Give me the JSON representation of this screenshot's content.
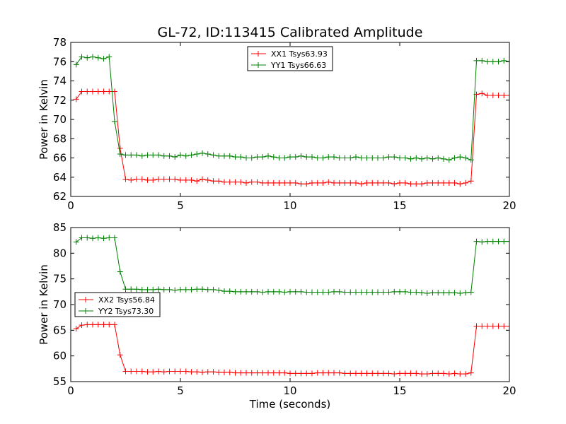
{
  "chart_data": {
    "title": "GL-72, ID:113415 Calibrated Amplitude",
    "xlabel": "Time (seconds)",
    "xlim": [
      0,
      20
    ],
    "xticks": [
      "0",
      "5",
      "10",
      "15",
      "20"
    ],
    "panels": [
      {
        "type": "line",
        "ylabel": "Power in Kelvin",
        "ylim": [
          62,
          78
        ],
        "yticks": [
          "62",
          "64",
          "66",
          "68",
          "70",
          "72",
          "74",
          "76",
          "78"
        ],
        "legend_position": "upper-center",
        "series": [
          {
            "name": "XX1 Tsys63.93",
            "color": "#ff0000",
            "x": [
              0.25,
              0.5,
              0.75,
              1.0,
              1.25,
              1.5,
              1.75,
              2.0,
              2.25,
              2.5,
              2.75,
              3.0,
              3.25,
              3.5,
              3.75,
              4.0,
              4.25,
              4.5,
              4.75,
              5.0,
              5.25,
              5.5,
              5.75,
              6.0,
              6.25,
              6.5,
              6.75,
              7.0,
              7.25,
              7.5,
              7.75,
              8.0,
              8.25,
              8.5,
              8.75,
              9.0,
              9.25,
              9.5,
              9.75,
              10.0,
              10.25,
              10.5,
              10.75,
              11.0,
              11.25,
              11.5,
              11.75,
              12.0,
              12.25,
              12.5,
              12.75,
              13.0,
              13.25,
              13.5,
              13.75,
              14.0,
              14.25,
              14.5,
              14.75,
              15.0,
              15.25,
              15.5,
              15.75,
              16.0,
              16.25,
              16.5,
              16.75,
              17.0,
              17.25,
              17.5,
              17.75,
              18.0,
              18.25,
              18.5,
              18.75,
              19.0,
              19.25,
              19.5,
              19.75,
              20.0
            ],
            "values": [
              72.1,
              72.9,
              72.9,
              72.9,
              72.9,
              72.9,
              72.9,
              72.9,
              67.0,
              63.8,
              63.7,
              63.8,
              63.8,
              63.7,
              63.7,
              63.8,
              63.8,
              63.8,
              63.8,
              63.7,
              63.7,
              63.7,
              63.6,
              63.8,
              63.7,
              63.6,
              63.6,
              63.5,
              63.5,
              63.5,
              63.5,
              63.4,
              63.5,
              63.5,
              63.4,
              63.4,
              63.4,
              63.4,
              63.4,
              63.4,
              63.4,
              63.3,
              63.3,
              63.4,
              63.4,
              63.4,
              63.5,
              63.4,
              63.4,
              63.4,
              63.4,
              63.4,
              63.3,
              63.4,
              63.4,
              63.4,
              63.4,
              63.4,
              63.3,
              63.4,
              63.4,
              63.3,
              63.3,
              63.3,
              63.4,
              63.4,
              63.4,
              63.4,
              63.4,
              63.4,
              63.3,
              63.4,
              63.6,
              72.6,
              72.7,
              72.5,
              72.5,
              72.5,
              72.5,
              72.5
            ]
          },
          {
            "name": "YY1 Tsys66.63",
            "color": "#008000",
            "x": [
              0.25,
              0.5,
              0.75,
              1.0,
              1.25,
              1.5,
              1.75,
              2.0,
              2.25,
              2.5,
              2.75,
              3.0,
              3.25,
              3.5,
              3.75,
              4.0,
              4.25,
              4.5,
              4.75,
              5.0,
              5.25,
              5.5,
              5.75,
              6.0,
              6.25,
              6.5,
              6.75,
              7.0,
              7.25,
              7.5,
              7.75,
              8.0,
              8.25,
              8.5,
              8.75,
              9.0,
              9.25,
              9.5,
              9.75,
              10.0,
              10.25,
              10.5,
              10.75,
              11.0,
              11.25,
              11.5,
              11.75,
              12.0,
              12.25,
              12.5,
              12.75,
              13.0,
              13.25,
              13.5,
              13.75,
              14.0,
              14.25,
              14.5,
              14.75,
              15.0,
              15.25,
              15.5,
              15.75,
              16.0,
              16.25,
              16.5,
              16.75,
              17.0,
              17.25,
              17.5,
              17.75,
              18.0,
              18.25,
              18.5,
              18.75,
              19.0,
              19.25,
              19.5,
              19.75,
              20.0
            ],
            "values": [
              75.7,
              76.5,
              76.4,
              76.5,
              76.4,
              76.3,
              76.5,
              69.8,
              66.4,
              66.3,
              66.3,
              66.3,
              66.2,
              66.3,
              66.3,
              66.3,
              66.2,
              66.2,
              66.1,
              66.3,
              66.2,
              66.3,
              66.4,
              66.5,
              66.4,
              66.3,
              66.2,
              66.2,
              66.2,
              66.1,
              66.1,
              66.0,
              66.0,
              66.1,
              66.1,
              66.2,
              66.1,
              66.0,
              66.0,
              66.1,
              66.1,
              66.2,
              66.1,
              66.1,
              66.0,
              66.0,
              66.1,
              66.1,
              66.0,
              66.0,
              66.0,
              66.1,
              66.0,
              66.0,
              66.0,
              66.0,
              66.0,
              66.1,
              66.1,
              66.0,
              66.0,
              65.9,
              66.0,
              65.9,
              66.0,
              65.9,
              66.0,
              65.9,
              65.8,
              66.0,
              66.1,
              66.0,
              65.8,
              76.1,
              76.1,
              76.0,
              76.0,
              76.0,
              76.1,
              76.0
            ]
          }
        ]
      },
      {
        "type": "line",
        "ylabel": "Power in Kelvin",
        "ylim": [
          55,
          85
        ],
        "yticks": [
          "55",
          "60",
          "65",
          "70",
          "75",
          "80",
          "85"
        ],
        "legend_position": "center-left",
        "series": [
          {
            "name": "XX2 Tsys56.84",
            "color": "#ff0000",
            "x": [
              0.25,
              0.5,
              0.75,
              1.0,
              1.25,
              1.5,
              1.75,
              2.0,
              2.25,
              2.5,
              2.75,
              3.0,
              3.25,
              3.5,
              3.75,
              4.0,
              4.25,
              4.5,
              4.75,
              5.0,
              5.25,
              5.5,
              5.75,
              6.0,
              6.25,
              6.5,
              6.75,
              7.0,
              7.25,
              7.5,
              7.75,
              8.0,
              8.25,
              8.5,
              8.75,
              9.0,
              9.25,
              9.5,
              9.75,
              10.0,
              10.25,
              10.5,
              10.75,
              11.0,
              11.25,
              11.5,
              11.75,
              12.0,
              12.25,
              12.5,
              12.75,
              13.0,
              13.25,
              13.5,
              13.75,
              14.0,
              14.25,
              14.5,
              14.75,
              15.0,
              15.25,
              15.5,
              15.75,
              16.0,
              16.25,
              16.5,
              16.75,
              17.0,
              17.25,
              17.5,
              17.75,
              18.0,
              18.25,
              18.5,
              18.75,
              19.0,
              19.25,
              19.5,
              19.75,
              20.0
            ],
            "values": [
              65.3,
              66.0,
              66.1,
              66.1,
              66.1,
              66.1,
              66.1,
              66.1,
              60.2,
              57.0,
              57.0,
              57.0,
              57.0,
              56.9,
              56.9,
              57.0,
              56.9,
              57.0,
              57.0,
              57.0,
              57.0,
              56.9,
              56.9,
              56.8,
              56.9,
              56.9,
              56.8,
              56.8,
              56.8,
              56.7,
              56.7,
              56.7,
              56.7,
              56.7,
              56.7,
              56.7,
              56.7,
              56.7,
              56.7,
              56.6,
              56.6,
              56.6,
              56.6,
              56.6,
              56.7,
              56.7,
              56.7,
              56.7,
              56.7,
              56.6,
              56.6,
              56.6,
              56.6,
              56.6,
              56.6,
              56.6,
              56.6,
              56.6,
              56.5,
              56.6,
              56.6,
              56.6,
              56.6,
              56.5,
              56.5,
              56.6,
              56.6,
              56.6,
              56.5,
              56.6,
              56.5,
              56.5,
              56.7,
              65.8,
              65.8,
              65.8,
              65.8,
              65.8,
              65.8,
              65.8
            ]
          },
          {
            "name": "YY2 Tsys73.30",
            "color": "#008000",
            "x": [
              0.25,
              0.5,
              0.75,
              1.0,
              1.25,
              1.5,
              1.75,
              2.0,
              2.25,
              2.5,
              2.75,
              3.0,
              3.25,
              3.5,
              3.75,
              4.0,
              4.25,
              4.5,
              4.75,
              5.0,
              5.25,
              5.5,
              5.75,
              6.0,
              6.25,
              6.5,
              6.75,
              7.0,
              7.25,
              7.5,
              7.75,
              8.0,
              8.25,
              8.5,
              8.75,
              9.0,
              9.25,
              9.5,
              9.75,
              10.0,
              10.25,
              10.5,
              10.75,
              11.0,
              11.25,
              11.5,
              11.75,
              12.0,
              12.25,
              12.5,
              12.75,
              13.0,
              13.25,
              13.5,
              13.75,
              14.0,
              14.25,
              14.5,
              14.75,
              15.0,
              15.25,
              15.5,
              15.75,
              16.0,
              16.25,
              16.5,
              16.75,
              17.0,
              17.25,
              17.5,
              17.75,
              18.0,
              18.25,
              18.5,
              18.75,
              19.0,
              19.25,
              19.5,
              19.75,
              20.0
            ],
            "values": [
              82.2,
              83.0,
              83.0,
              82.9,
              83.0,
              82.9,
              83.0,
              83.0,
              76.4,
              73.0,
              73.0,
              73.0,
              72.9,
              72.9,
              72.9,
              73.0,
              72.9,
              72.9,
              72.8,
              72.9,
              72.9,
              72.9,
              73.0,
              73.0,
              72.9,
              72.9,
              72.8,
              72.6,
              72.6,
              72.5,
              72.5,
              72.5,
              72.5,
              72.5,
              72.4,
              72.5,
              72.5,
              72.5,
              72.4,
              72.5,
              72.5,
              72.5,
              72.4,
              72.4,
              72.4,
              72.4,
              72.4,
              72.5,
              72.5,
              72.4,
              72.4,
              72.4,
              72.4,
              72.4,
              72.4,
              72.4,
              72.4,
              72.4,
              72.5,
              72.5,
              72.5,
              72.4,
              72.4,
              72.3,
              72.2,
              72.3,
              72.3,
              72.3,
              72.3,
              72.3,
              72.2,
              72.3,
              72.4,
              82.3,
              82.2,
              82.3,
              82.3,
              82.3,
              82.3,
              82.3
            ]
          }
        ]
      }
    ]
  }
}
